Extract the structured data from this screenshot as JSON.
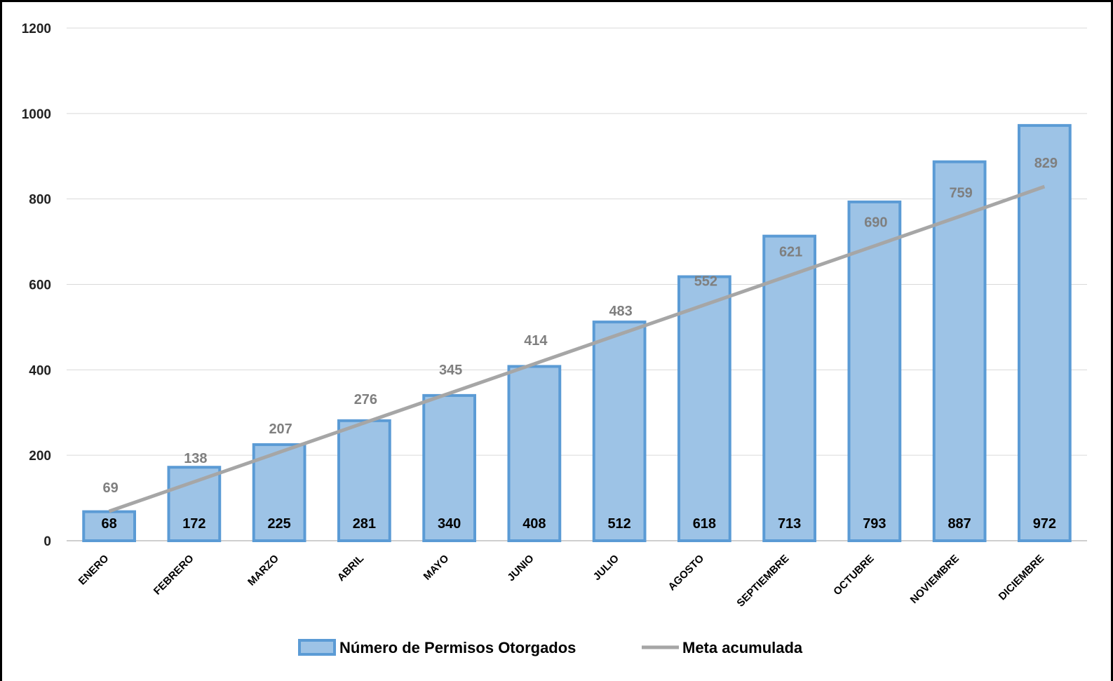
{
  "chart_data": {
    "type": "bar",
    "categories": [
      "ENERO",
      "FEBRERO",
      "MARZO",
      "ABRIL",
      "MAYO",
      "JUNIO",
      "JULIO",
      "AGOSTO",
      "SEPTIEMBRE",
      "OCTUBRE",
      "NOVIEMBRE",
      "DICIEMBRE"
    ],
    "series": [
      {
        "name": "Número de Permisos Otorgados",
        "type": "bar",
        "color": "#9dc3e6",
        "border_color": "#5b9bd5",
        "values": [
          68,
          172,
          225,
          281,
          340,
          408,
          512,
          618,
          713,
          793,
          887,
          972
        ],
        "labels": [
          "68",
          "172",
          "225",
          "281",
          "340",
          "408",
          "512",
          "618",
          "713",
          "793",
          "887",
          "972"
        ]
      },
      {
        "name": "Meta acumulada",
        "type": "line",
        "color": "#a6a6a6",
        "values": [
          69,
          138,
          207,
          276,
          345,
          414,
          483,
          552,
          621,
          690,
          759,
          829
        ],
        "labels": [
          "69",
          "138",
          "207",
          "276",
          "345",
          "414",
          "483",
          "552",
          "621",
          "690",
          "759",
          "829"
        ]
      }
    ],
    "title": "",
    "xlabel": "",
    "ylabel": "",
    "ylim": [
      0,
      1200
    ],
    "yticks": [
      "0",
      "200",
      "400",
      "600",
      "800",
      "1000",
      "1200"
    ],
    "grid": true,
    "legend_position": "bottom"
  }
}
